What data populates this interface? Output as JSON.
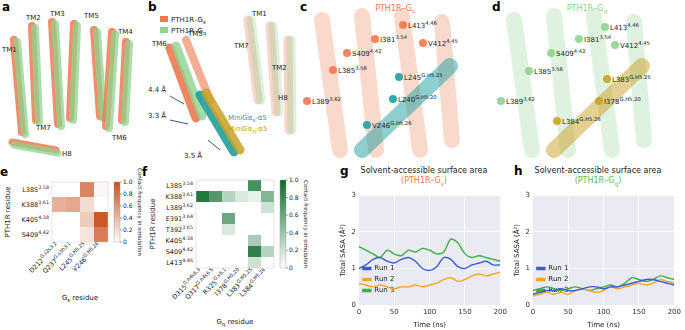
{
  "panels": [
    {
      "label": "a",
      "helices": [
        "TM1",
        "TM2",
        "TM3",
        "TM5",
        "TM4",
        "TM6",
        "TM7",
        "H8"
      ],
      "colors": [
        "#f07850",
        "#8fd38f"
      ]
    },
    {
      "label": "b",
      "legend": [
        {
          "text": "PTH1R–G",
          "sub": "s",
          "color": "#f07850"
        },
        {
          "text": "PTH1R–G",
          "sub": "q",
          "color": "#8fd38f"
        }
      ],
      "helices": [
        "TM1",
        "TM7",
        "TM2",
        "H8",
        "TM6",
        "TM5"
      ],
      "distances": [
        "4.4 Å",
        "3.3 Å",
        "3.5 Å"
      ],
      "alpha5": [
        {
          "text": "MiniGα",
          "sub": "s",
          "suffix": "-α5",
          "color": "#1f9e9e"
        },
        {
          "text": "MiniGα",
          "sub": "q",
          "suffix": "-α5",
          "color": "#c9a227"
        }
      ]
    },
    {
      "label": "c",
      "title": {
        "text": "PTH1R–G",
        "sub": "s",
        "color": "#f07850"
      },
      "helix_color": "#1f9e9e",
      "residues": [
        {
          "text": "L413",
          "sup": "4.46"
        },
        {
          "text": "V412",
          "sup": "4.45"
        },
        {
          "text": "I381",
          "sup": "3.54"
        },
        {
          "text": "S409",
          "sup": "4.42"
        },
        {
          "text": "L385",
          "sup": "3.58"
        },
        {
          "text": "L389",
          "sup": "3.62"
        },
        {
          "text": "L245",
          "sup": "G.H5.25"
        },
        {
          "text": "L240",
          "sup": "G.H5.20"
        },
        {
          "text": "V246",
          "sup": "G.H5.26"
        }
      ]
    },
    {
      "label": "d",
      "title": {
        "text": "PTH1R–G",
        "sub": "q",
        "color": "#8fd38f"
      },
      "helix_color": "#c9a227",
      "residues": [
        {
          "text": "L413",
          "sup": "4.46"
        },
        {
          "text": "I381",
          "sup": "3.54"
        },
        {
          "text": "S409",
          "sup": "4.42"
        },
        {
          "text": "V412",
          "sup": "4.45"
        },
        {
          "text": "L385",
          "sup": "3.58"
        },
        {
          "text": "L389",
          "sup": "3.62"
        },
        {
          "text": "L383",
          "sup": "G.H5.25"
        },
        {
          "text": "I378",
          "sup": "G.H5.20"
        },
        {
          "text": "L384",
          "sup": "G.H5.26"
        }
      ]
    }
  ],
  "chart_data": [
    {
      "label": "e",
      "type": "heatmap",
      "ylabel": "PTH1R residue",
      "xlabel": {
        "text": "G",
        "sub": "s",
        "suffix": " residue"
      },
      "categories": [
        {
          "text": "D212",
          "sup": "G.s2s3.2"
        },
        {
          "text": "Q237",
          "sup": "G.s3h3.1"
        },
        {
          "text": "L245",
          "sup": "G.H5.25"
        },
        {
          "text": "V246",
          "sup": "G.H5.26"
        }
      ],
      "rows": [
        {
          "text": "L385",
          "sup": "3.58"
        },
        {
          "text": "K388",
          "sup": "3.61"
        },
        {
          "text": "K405",
          "sup": "4.38"
        },
        {
          "text": "S409",
          "sup": "4.42"
        }
      ],
      "cells": [
        [
          0,
          0,
          0.7,
          0.05
        ],
        [
          0.45,
          0.5,
          0.2,
          0
        ],
        [
          0,
          0,
          0.3,
          0.95
        ],
        [
          0,
          0,
          0.15,
          0.75
        ]
      ],
      "color": "#c8501e",
      "colorbar": {
        "label": "Contact frequency in simulation",
        "range": [
          0,
          1
        ],
        "ticks": [
          0,
          0.2,
          0.4,
          0.6,
          0.8,
          {
            "value": 1,
            "label": "1.0"
          }
        ]
      }
    },
    {
      "label": "f",
      "type": "heatmap",
      "ylabel": "PTH1R residue",
      "xlabel": {
        "text": "G",
        "sub": "q",
        "suffix": " residue"
      },
      "categories": [
        {
          "text": "D315",
          "sup": "G.h4s6.3"
        },
        {
          "text": "Q317",
          "sup": "G.h4s6.5"
        },
        {
          "text": "R325",
          "sup": "G.s6.1"
        },
        {
          "text": "I378",
          "sup": "G.H5.20"
        },
        {
          "text": "L383",
          "sup": "G.H5.25"
        },
        {
          "text": "L384",
          "sup": "G.H5.26"
        }
      ],
      "rows": [
        {
          "text": "L385",
          "sup": "3.58"
        },
        {
          "text": "K388",
          "sup": "3.61"
        },
        {
          "text": "L389",
          "sup": "3.62"
        },
        {
          "text": "E391",
          "sup": "3.64"
        },
        {
          "text": "T392",
          "sup": "3.65"
        },
        {
          "text": "K405",
          "sup": "4.38"
        },
        {
          "text": "S409",
          "sup": "4.42"
        },
        {
          "text": "L413",
          "sup": "4.46"
        }
      ],
      "cells": [
        [
          0,
          0,
          0,
          0,
          0.75,
          0
        ],
        [
          0.9,
          0.7,
          0.3,
          0.15,
          0.1,
          0.5
        ],
        [
          0,
          0,
          0,
          0,
          0,
          0.2
        ],
        [
          0,
          0,
          0.6,
          0,
          0,
          0
        ],
        [
          0,
          0,
          0.15,
          0,
          0,
          0
        ],
        [
          0,
          0,
          0,
          0,
          0.35,
          0
        ],
        [
          0,
          0,
          0,
          0,
          0.85,
          0.3
        ],
        [
          0,
          0,
          0,
          0,
          0.2,
          0
        ]
      ],
      "color": "#0b6b2b",
      "colorbar": {
        "label": "Contact frequency in simulation",
        "range": [
          0,
          1
        ],
        "ticks": [
          0,
          0.2,
          0.4,
          0.6,
          0.8,
          {
            "value": 1,
            "label": "1.0"
          }
        ]
      }
    },
    {
      "label": "g",
      "type": "line",
      "title": "Solvent-accessible surface area",
      "subtitle": {
        "text": "(PTH1R–G",
        "sub": "s",
        "suffix": ")",
        "color": "#f07850"
      },
      "xlabel": "Time (ns)",
      "ylabel": "Total SASA (Å²)",
      "x": [
        0,
        10,
        20,
        30,
        40,
        50,
        60,
        70,
        80,
        90,
        100,
        110,
        120,
        130,
        140,
        150,
        160,
        170,
        180,
        190,
        200
      ],
      "xlim": [
        0,
        200
      ],
      "xticks": [
        0,
        50,
        100,
        150,
        200
      ],
      "ylim": [
        0,
        3
      ],
      "yticks": [
        0,
        1,
        2,
        3
      ],
      "grid": true,
      "legend": "upper right",
      "series": [
        {
          "name": "Run 1",
          "color": "#3b5bdb",
          "values": [
            1.0,
            1.1,
            1.25,
            1.3,
            1.2,
            1.15,
            1.25,
            1.3,
            1.2,
            1.0,
            0.95,
            1.05,
            1.3,
            1.25,
            1.05,
            1.0,
            1.1,
            1.15,
            1.2,
            1.1,
            1.1
          ]
        },
        {
          "name": "Run 2",
          "color": "#f5a623",
          "values": [
            0.6,
            0.55,
            0.5,
            0.55,
            0.5,
            0.45,
            0.5,
            0.5,
            0.55,
            0.5,
            0.55,
            0.6,
            0.7,
            0.75,
            0.65,
            0.7,
            0.8,
            0.85,
            0.8,
            0.85,
            0.9
          ]
        },
        {
          "name": "Run 3",
          "color": "#3cb043",
          "values": [
            1.6,
            1.5,
            1.4,
            1.3,
            1.5,
            1.4,
            1.35,
            1.5,
            1.45,
            1.55,
            1.5,
            1.4,
            1.45,
            1.8,
            1.7,
            1.4,
            1.3,
            1.35,
            1.3,
            1.25,
            1.2
          ]
        }
      ]
    },
    {
      "label": "h",
      "type": "line",
      "title": "Solvent-accessible surface area",
      "subtitle": {
        "text": "(PTH1R–G",
        "sub": "q",
        "suffix": ")",
        "color": "#5cb85c"
      },
      "xlabel": "Time (ns)",
      "ylabel": "Total SASA (Å²)",
      "x": [
        0,
        10,
        20,
        30,
        40,
        50,
        60,
        70,
        80,
        90,
        100,
        110,
        120,
        130,
        140,
        150,
        160,
        170,
        180,
        190,
        200
      ],
      "xlim": [
        0,
        200
      ],
      "xticks": [
        0,
        50,
        100,
        150,
        200
      ],
      "ylim": [
        0,
        3
      ],
      "yticks": [
        0,
        1,
        2,
        3
      ],
      "grid": true,
      "legend": "upper right",
      "series": [
        {
          "name": "Run 1",
          "color": "#3b5bdb",
          "values": [
            0.3,
            0.35,
            0.4,
            0.4,
            0.45,
            0.4,
            0.4,
            0.45,
            0.5,
            0.5,
            0.45,
            0.5,
            0.5,
            0.55,
            0.6,
            0.65,
            0.7,
            0.7,
            0.65,
            0.6,
            0.55
          ]
        },
        {
          "name": "Run 2",
          "color": "#f5a623",
          "values": [
            0.25,
            0.3,
            0.35,
            0.3,
            0.35,
            0.3,
            0.4,
            0.45,
            0.4,
            0.35,
            0.4,
            0.5,
            0.45,
            0.5,
            0.55,
            0.6,
            0.55,
            0.6,
            0.7,
            0.65,
            0.6
          ]
        },
        {
          "name": "Run 3",
          "color": "#3cb043",
          "values": [
            0.4,
            0.45,
            0.5,
            0.45,
            0.4,
            0.45,
            0.5,
            0.45,
            0.4,
            0.45,
            0.5,
            0.55,
            0.5,
            0.6,
            0.75,
            0.7,
            0.65,
            0.7,
            0.8,
            0.75,
            0.7
          ]
        }
      ]
    }
  ]
}
